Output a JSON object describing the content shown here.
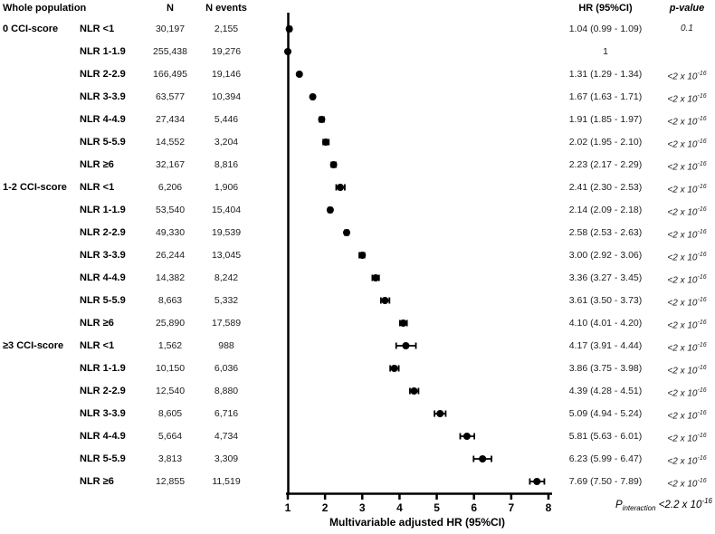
{
  "headers": {
    "population": "Whole population",
    "n": "N",
    "n_events": "N events",
    "hr": "HR (95%CI)",
    "p": "p-value"
  },
  "footer": {
    "p_symbol": "P",
    "p_sub": "interaction",
    "p_value": " <2.2 x 10",
    "p_exp": "-16"
  },
  "colors": {
    "ink": "#000000"
  },
  "chart_data": {
    "type": "scatter",
    "variant": "forest-plot",
    "title": "",
    "xlabel": "Multivariable adjusted HR (95%CI)",
    "xlim": [
      1,
      8
    ],
    "x_ticks": [
      "1",
      "2",
      "3",
      "4",
      "5",
      "6",
      "7",
      "8"
    ],
    "reference_line_x": 1,
    "grid": false,
    "rows": [
      {
        "group": "0 CCI-score",
        "label": "NLR <1",
        "n": "30,197",
        "events": "2,155",
        "hr": 1.04,
        "lo": 0.99,
        "hi": 1.09,
        "hr_text": "1.04 (0.99 - 1.09)",
        "p": "0.1",
        "p_exp": ""
      },
      {
        "group": "",
        "label": "NLR 1-1.9",
        "n": "255,438",
        "events": "19,276",
        "hr": 1.0,
        "lo": null,
        "hi": null,
        "hr_text": "1",
        "p": "",
        "p_exp": ""
      },
      {
        "group": "",
        "label": "NLR 2-2.9",
        "n": "166,495",
        "events": "19,146",
        "hr": 1.31,
        "lo": 1.29,
        "hi": 1.34,
        "hr_text": "1.31 (1.29 - 1.34)",
        "p": "<2 x 10",
        "p_exp": "-16"
      },
      {
        "group": "",
        "label": "NLR 3-3.9",
        "n": "63,577",
        "events": "10,394",
        "hr": 1.67,
        "lo": 1.63,
        "hi": 1.71,
        "hr_text": "1.67 (1.63 - 1.71)",
        "p": "<2 x 10",
        "p_exp": "-16"
      },
      {
        "group": "",
        "label": "NLR 4-4.9",
        "n": "27,434",
        "events": "5,446",
        "hr": 1.91,
        "lo": 1.85,
        "hi": 1.97,
        "hr_text": "1.91 (1.85 - 1.97)",
        "p": "<2 x 10",
        "p_exp": "-16"
      },
      {
        "group": "",
        "label": "NLR 5-5.9",
        "n": "14,552",
        "events": "3,204",
        "hr": 2.02,
        "lo": 1.95,
        "hi": 2.1,
        "hr_text": "2.02 (1.95 - 2.10)",
        "p": "<2 x 10",
        "p_exp": "-16"
      },
      {
        "group": "",
        "label": "NLR ≥6",
        "n": "32,167",
        "events": "8,816",
        "hr": 2.23,
        "lo": 2.17,
        "hi": 2.29,
        "hr_text": "2.23 (2.17 - 2.29)",
        "p": "<2 x 10",
        "p_exp": "-16"
      },
      {
        "group": "1-2 CCI-score",
        "label": "NLR <1",
        "n": "6,206",
        "events": "1,906",
        "hr": 2.41,
        "lo": 2.3,
        "hi": 2.53,
        "hr_text": "2.41 (2.30 - 2.53)",
        "p": "<2 x 10",
        "p_exp": "-16"
      },
      {
        "group": "",
        "label": "NLR 1-1.9",
        "n": "53,540",
        "events": "15,404",
        "hr": 2.14,
        "lo": 2.09,
        "hi": 2.18,
        "hr_text": "2.14 (2.09 - 2.18)",
        "p": "<2 x 10",
        "p_exp": "-16"
      },
      {
        "group": "",
        "label": "NLR 2-2.9",
        "n": "49,330",
        "events": "19,539",
        "hr": 2.58,
        "lo": 2.53,
        "hi": 2.63,
        "hr_text": "2.58 (2.53 - 2.63)",
        "p": "<2 x 10",
        "p_exp": "-16"
      },
      {
        "group": "",
        "label": "NLR 3-3.9",
        "n": "26,244",
        "events": "13,045",
        "hr": 3.0,
        "lo": 2.92,
        "hi": 3.06,
        "hr_text": "3.00 (2.92 - 3.06)",
        "p": "<2 x 10",
        "p_exp": "-16"
      },
      {
        "group": "",
        "label": "NLR 4-4.9",
        "n": "14,382",
        "events": "8,242",
        "hr": 3.36,
        "lo": 3.27,
        "hi": 3.45,
        "hr_text": "3.36 (3.27 - 3.45)",
        "p": "<2 x 10",
        "p_exp": "-16"
      },
      {
        "group": "",
        "label": "NLR 5-5.9",
        "n": "8,663",
        "events": "5,332",
        "hr": 3.61,
        "lo": 3.5,
        "hi": 3.73,
        "hr_text": "3.61 (3.50 - 3.73)",
        "p": "<2 x 10",
        "p_exp": "-16"
      },
      {
        "group": "",
        "label": "NLR ≥6",
        "n": "25,890",
        "events": "17,589",
        "hr": 4.1,
        "lo": 4.01,
        "hi": 4.2,
        "hr_text": "4.10 (4.01 - 4.20)",
        "p": "<2 x 10",
        "p_exp": "-16"
      },
      {
        "group": "≥3 CCI-score",
        "label": "NLR <1",
        "n": "1,562",
        "events": "988",
        "hr": 4.17,
        "lo": 3.91,
        "hi": 4.44,
        "hr_text": "4.17 (3.91 - 4.44)",
        "p": "<2 x 10",
        "p_exp": "-16"
      },
      {
        "group": "",
        "label": "NLR 1-1.9",
        "n": "10,150",
        "events": "6,036",
        "hr": 3.86,
        "lo": 3.75,
        "hi": 3.98,
        "hr_text": "3.86 (3.75 - 3.98)",
        "p": "<2 x 10",
        "p_exp": "-16"
      },
      {
        "group": "",
        "label": "NLR 2-2.9",
        "n": "12,540",
        "events": "8,880",
        "hr": 4.39,
        "lo": 4.28,
        "hi": 4.51,
        "hr_text": "4.39 (4.28 - 4.51)",
        "p": "<2 x 10",
        "p_exp": "-16"
      },
      {
        "group": "",
        "label": "NLR 3-3.9",
        "n": "8,605",
        "events": "6,716",
        "hr": 5.09,
        "lo": 4.94,
        "hi": 5.24,
        "hr_text": "5.09 (4.94 - 5.24)",
        "p": "<2 x 10",
        "p_exp": "-16"
      },
      {
        "group": "",
        "label": "NLR 4-4.9",
        "n": "5,664",
        "events": "4,734",
        "hr": 5.81,
        "lo": 5.63,
        "hi": 6.01,
        "hr_text": "5.81 (5.63 - 6.01)",
        "p": "<2 x 10",
        "p_exp": "-16"
      },
      {
        "group": "",
        "label": "NLR 5-5.9",
        "n": "3,813",
        "events": "3,309",
        "hr": 6.23,
        "lo": 5.99,
        "hi": 6.47,
        "hr_text": "6.23 (5.99 - 6.47)",
        "p": "<2 x 10",
        "p_exp": "-16"
      },
      {
        "group": "",
        "label": "NLR ≥6",
        "n": "12,855",
        "events": "11,519",
        "hr": 7.69,
        "lo": 7.5,
        "hi": 7.89,
        "hr_text": "7.69 (7.50 - 7.89)",
        "p": "<2 x 10",
        "p_exp": "-16"
      }
    ]
  }
}
